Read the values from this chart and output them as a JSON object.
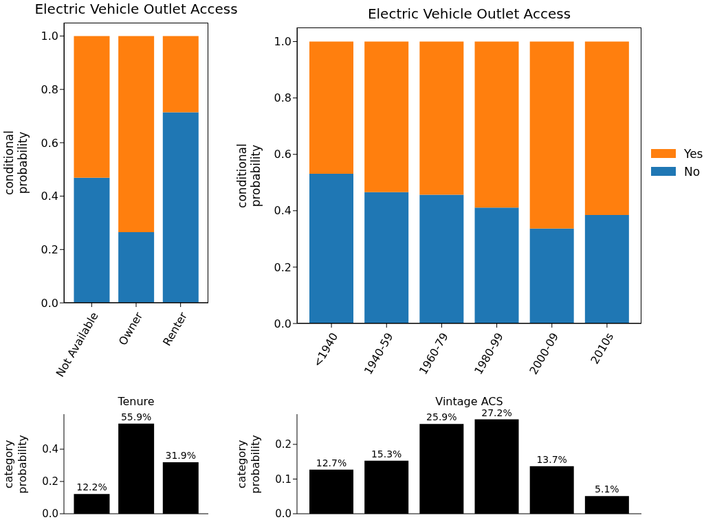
{
  "chart_data": [
    {
      "type": "bar",
      "title": "Electric Vehicle Outlet Access",
      "ylabel": "conditional probability",
      "categories": [
        "Not Available",
        "Owner",
        "Renter"
      ],
      "stacked": true,
      "series": [
        {
          "color": "#1f77b4",
          "values": [
            0.469,
            0.265,
            0.714
          ]
        },
        {
          "color": "#ff7f0e",
          "values": [
            0.531,
            0.735,
            0.286
          ]
        }
      ],
      "ylim": [
        0,
        1.05
      ],
      "yticks": [
        {
          "value": 0,
          "label": "0.0"
        },
        {
          "value": 0.2,
          "label": "0.2"
        },
        {
          "value": 0.4,
          "label": "0.4"
        },
        {
          "value": 0.6,
          "label": "0.6"
        },
        {
          "value": 0.8,
          "label": "0.8"
        },
        {
          "value": 1,
          "label": "1.0"
        }
      ],
      "grid": false,
      "legend": false
    },
    {
      "type": "bar",
      "title": "Electric Vehicle Outlet Access",
      "ylabel": "conditional probability",
      "categories": [
        "<1940",
        "1940-59",
        "1960-79",
        "1980-99",
        "2000-09",
        "2010s"
      ],
      "stacked": true,
      "series": [
        {
          "name": "No",
          "color": "#1f77b4",
          "values": [
            0.531,
            0.466,
            0.457,
            0.411,
            0.337,
            0.385
          ]
        },
        {
          "name": "Yes",
          "color": "#ff7f0e",
          "values": [
            0.469,
            0.534,
            0.543,
            0.589,
            0.663,
            0.615
          ]
        }
      ],
      "ylim": [
        0,
        1.05
      ],
      "yticks": [
        {
          "value": 0,
          "label": "0.0"
        },
        {
          "value": 0.2,
          "label": "0.2"
        },
        {
          "value": 0.4,
          "label": "0.4"
        },
        {
          "value": 0.6,
          "label": "0.6"
        },
        {
          "value": 0.8,
          "label": "0.8"
        },
        {
          "value": 1,
          "label": "1.0"
        }
      ],
      "grid": false,
      "legend": "right"
    },
    {
      "type": "bar",
      "title": "Tenure",
      "ylabel": "category probability",
      "categories": [
        null,
        null,
        null
      ],
      "values": [
        0.122,
        0.559,
        0.319
      ],
      "color": "#000000",
      "value_labels": [
        "12.2%",
        "55.9%",
        "31.9%"
      ],
      "ylim": [
        0,
        0.617
      ],
      "yticks": [
        {
          "value": 0,
          "label": "0.0"
        },
        {
          "value": 0.2,
          "label": "0.2"
        },
        {
          "value": 0.4,
          "label": "0.4"
        }
      ],
      "grid": false,
      "tick_labels": "y"
    },
    {
      "type": "bar",
      "title": "Vintage ACS",
      "ylabel": "category probability",
      "categories": [
        null,
        null,
        null,
        null,
        null,
        null
      ],
      "values": [
        0.127,
        0.153,
        0.259,
        0.272,
        0.137,
        0.051
      ],
      "color": "#000000",
      "value_labels": [
        "12.7%",
        "15.3%",
        "25.9%",
        "27.2%",
        "13.7%",
        "5.1%"
      ],
      "ylim": [
        0,
        0.287
      ],
      "yticks": [
        {
          "value": 0,
          "label": "0.0"
        },
        {
          "value": 0.1,
          "label": "0.1"
        },
        {
          "value": 0.2,
          "label": "0.2"
        }
      ],
      "grid": false,
      "tick_labels": "y"
    }
  ]
}
